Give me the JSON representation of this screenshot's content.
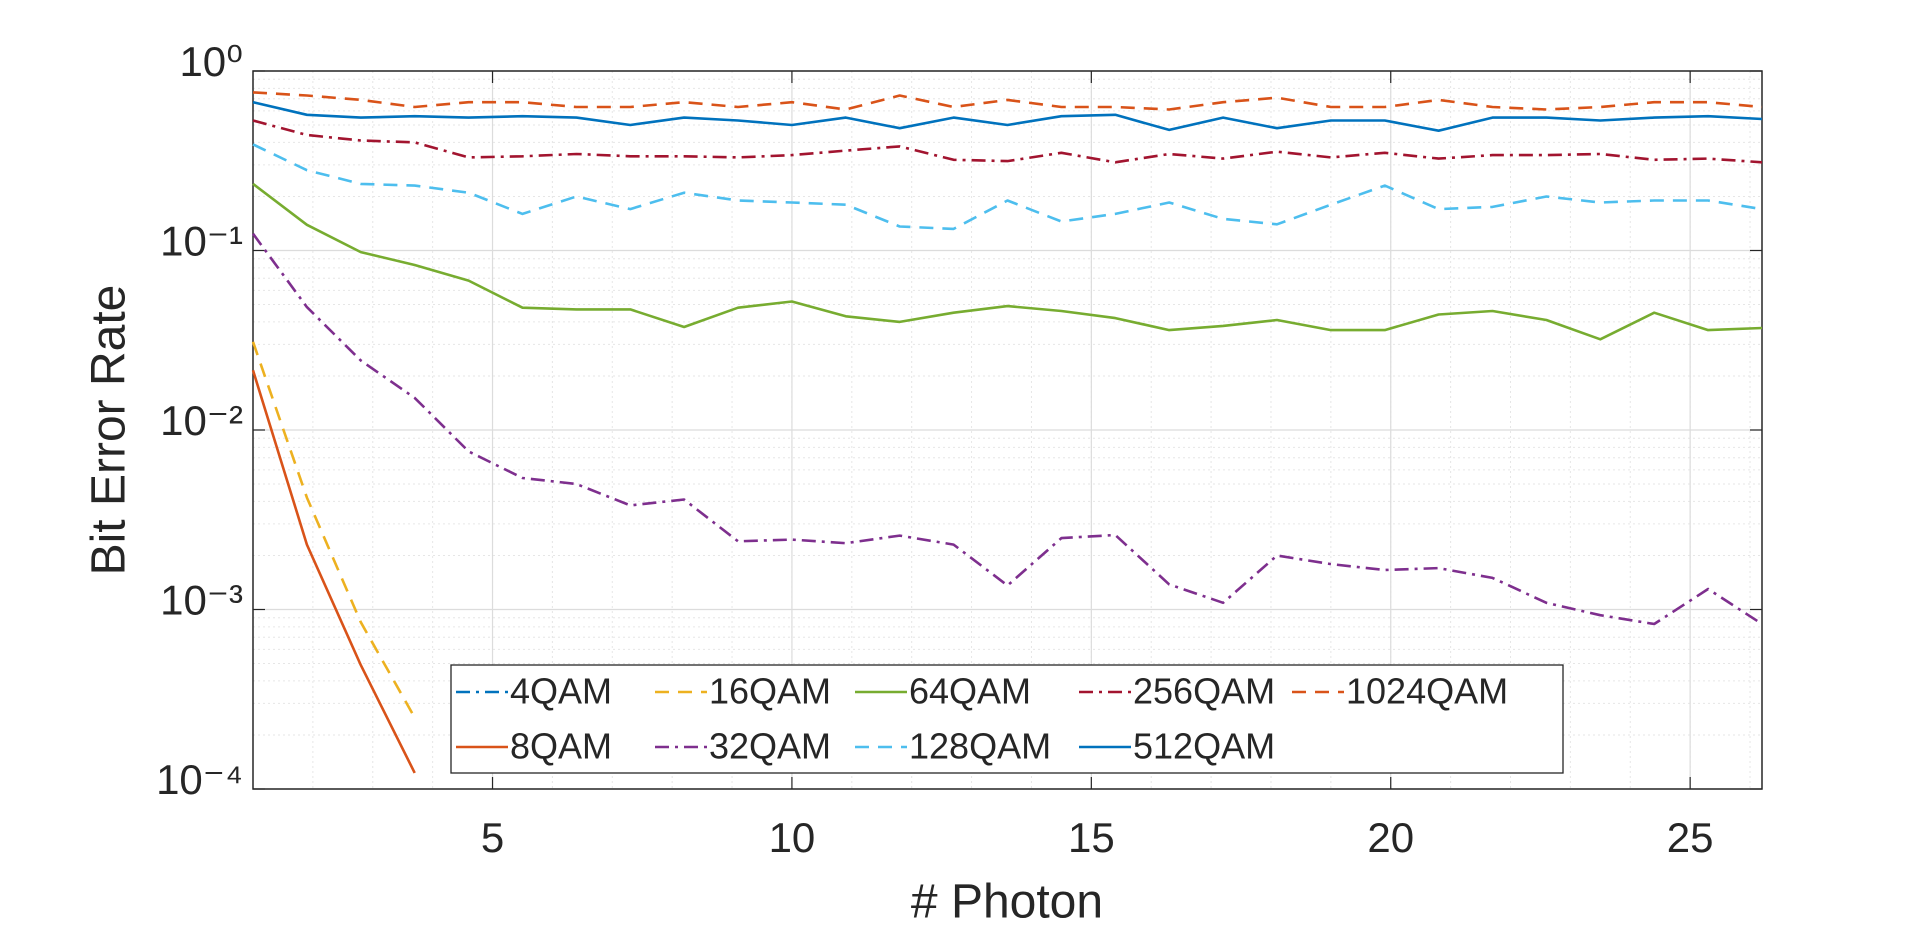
{
  "chart_data": {
    "type": "line",
    "xlabel": "# Photon",
    "ylabel": "Bit Error Rate",
    "x": [
      1,
      1.9,
      2.8,
      3.7,
      4.6,
      5.5,
      6.4,
      7.3,
      8.2,
      9.1,
      10,
      10.9,
      11.8,
      12.7,
      13.6,
      14.5,
      15.4,
      16.3,
      17.2,
      18.1,
      19,
      19.9,
      20.8,
      21.7,
      22.6,
      23.5,
      24.4,
      25.3,
      26.2
    ],
    "xlim": [
      1,
      26.2
    ],
    "xticks": [
      5,
      10,
      15,
      20,
      25
    ],
    "ylim": [
      0.0001,
      1
    ],
    "yscale": "log",
    "yticks": [
      {
        "value": 0.0001,
        "label": "10⁻⁴"
      },
      {
        "value": 0.001,
        "label": "10⁻³"
      },
      {
        "value": 0.01,
        "label": "10⁻²"
      },
      {
        "value": 0.1,
        "label": "10⁻¹"
      },
      {
        "value": 1,
        "label": "10⁰"
      }
    ],
    "grid": true,
    "minor_grid": true,
    "legend": "south",
    "series": [
      {
        "name": "4QAM",
        "color": "#0072BD",
        "style": "dashdot",
        "values": [
          null,
          null,
          null,
          null,
          null,
          null,
          null,
          null,
          null,
          null,
          null,
          null,
          null,
          null,
          null,
          null,
          null,
          null,
          null,
          null,
          null,
          null,
          null,
          null,
          null,
          null,
          null,
          null,
          null
        ]
      },
      {
        "name": "8QAM",
        "color": "#D95319",
        "style": "solid",
        "values": [
          0.0215,
          0.0023,
          0.00049,
          0.000123,
          null,
          null,
          null,
          null,
          null,
          null,
          null,
          null,
          null,
          null,
          null,
          null,
          null,
          null,
          null,
          null,
          null,
          null,
          null,
          null,
          null,
          null,
          null,
          null,
          null
        ]
      },
      {
        "name": "16QAM",
        "color": "#EDB120",
        "style": "dashed",
        "values": [
          0.031,
          0.0042,
          0.00085,
          0.00025,
          null,
          null,
          null,
          null,
          null,
          null,
          null,
          null,
          null,
          null,
          null,
          null,
          null,
          null,
          null,
          null,
          null,
          null,
          null,
          null,
          null,
          null,
          null,
          null,
          null
        ]
      },
      {
        "name": "32QAM",
        "color": "#7E2F8E",
        "style": "dashdot",
        "values": [
          0.124,
          0.0484,
          0.0244,
          0.0151,
          0.0076,
          0.0054,
          0.005,
          0.0038,
          0.0041,
          0.0024,
          0.00245,
          0.00234,
          0.00258,
          0.0023,
          0.00136,
          0.0025,
          0.0026,
          0.00138,
          0.00109,
          0.002,
          0.00179,
          0.00166,
          0.0017,
          0.0015,
          0.00109,
          0.00093,
          0.00083,
          0.0013,
          0.00083
        ]
      },
      {
        "name": "64QAM",
        "color": "#77AC30",
        "style": "solid",
        "values": [
          0.235,
          0.139,
          0.098,
          0.083,
          0.068,
          0.048,
          0.047,
          0.047,
          0.0375,
          0.048,
          0.052,
          0.043,
          0.04,
          0.045,
          0.049,
          0.046,
          0.042,
          0.036,
          0.038,
          0.041,
          0.036,
          0.036,
          0.044,
          0.046,
          0.041,
          0.032,
          0.045,
          0.036,
          0.037
        ]
      },
      {
        "name": "128QAM",
        "color": "#4DBEEE",
        "style": "dashed",
        "values": [
          0.39,
          0.28,
          0.235,
          0.23,
          0.21,
          0.16,
          0.2,
          0.17,
          0.21,
          0.19,
          0.185,
          0.18,
          0.136,
          0.132,
          0.19,
          0.145,
          0.16,
          0.185,
          0.15,
          0.14,
          0.18,
          0.23,
          0.17,
          0.175,
          0.2,
          0.185,
          0.19,
          0.19,
          0.17
        ]
      },
      {
        "name": "256QAM",
        "color": "#A2142F",
        "style": "dashdot",
        "values": [
          0.53,
          0.44,
          0.41,
          0.4,
          0.33,
          0.335,
          0.345,
          0.335,
          0.335,
          0.33,
          0.34,
          0.36,
          0.38,
          0.32,
          0.315,
          0.35,
          0.31,
          0.345,
          0.325,
          0.355,
          0.33,
          0.35,
          0.325,
          0.34,
          0.34,
          0.345,
          0.32,
          0.325,
          0.31
        ]
      },
      {
        "name": "512QAM",
        "color": "#0072BD",
        "style": "solid",
        "values": [
          0.67,
          0.57,
          0.55,
          0.56,
          0.55,
          0.56,
          0.55,
          0.5,
          0.55,
          0.53,
          0.5,
          0.55,
          0.48,
          0.55,
          0.5,
          0.56,
          0.57,
          0.47,
          0.55,
          0.48,
          0.53,
          0.53,
          0.465,
          0.55,
          0.55,
          0.53,
          0.55,
          0.56,
          0.54
        ]
      },
      {
        "name": "1024QAM",
        "color": "#D95319",
        "style": "dashed",
        "values": [
          0.76,
          0.73,
          0.69,
          0.63,
          0.67,
          0.67,
          0.63,
          0.63,
          0.67,
          0.63,
          0.67,
          0.61,
          0.73,
          0.63,
          0.69,
          0.63,
          0.63,
          0.61,
          0.67,
          0.71,
          0.63,
          0.63,
          0.69,
          0.63,
          0.61,
          0.63,
          0.67,
          0.67,
          0.63
        ]
      }
    ]
  }
}
